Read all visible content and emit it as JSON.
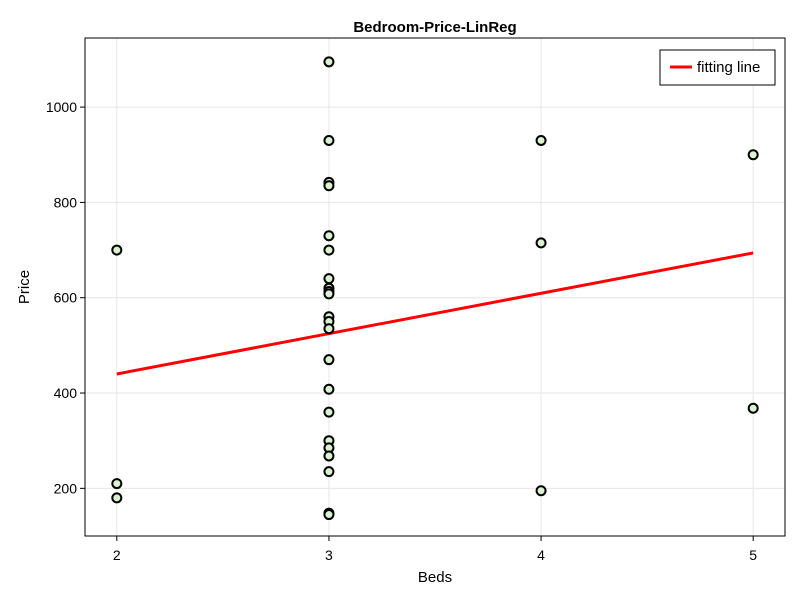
{
  "chart_data": {
    "type": "scatter",
    "title": "Bedroom-Price-LinReg",
    "xlabel": "Beds",
    "ylabel": "Price",
    "xlim": [
      1.85,
      5.15
    ],
    "ylim": [
      100,
      1145
    ],
    "xticks": [
      2,
      3,
      4,
      5
    ],
    "yticks": [
      200,
      400,
      600,
      800,
      1000
    ],
    "grid": true,
    "legend_position": "top-right",
    "points": [
      {
        "x": 2,
        "y": 700
      },
      {
        "x": 2,
        "y": 210
      },
      {
        "x": 2,
        "y": 180
      },
      {
        "x": 3,
        "y": 1095
      },
      {
        "x": 3,
        "y": 930
      },
      {
        "x": 3,
        "y": 842
      },
      {
        "x": 3,
        "y": 835
      },
      {
        "x": 3,
        "y": 730
      },
      {
        "x": 3,
        "y": 700
      },
      {
        "x": 3,
        "y": 640
      },
      {
        "x": 3,
        "y": 620
      },
      {
        "x": 3,
        "y": 613
      },
      {
        "x": 3,
        "y": 608
      },
      {
        "x": 3,
        "y": 560
      },
      {
        "x": 3,
        "y": 550
      },
      {
        "x": 3,
        "y": 535
      },
      {
        "x": 3,
        "y": 470
      },
      {
        "x": 3,
        "y": 408
      },
      {
        "x": 3,
        "y": 360
      },
      {
        "x": 3,
        "y": 300
      },
      {
        "x": 3,
        "y": 285
      },
      {
        "x": 3,
        "y": 268
      },
      {
        "x": 3,
        "y": 235
      },
      {
        "x": 3,
        "y": 148
      },
      {
        "x": 3,
        "y": 145
      },
      {
        "x": 4,
        "y": 930
      },
      {
        "x": 4,
        "y": 715
      },
      {
        "x": 4,
        "y": 195
      },
      {
        "x": 5,
        "y": 900
      },
      {
        "x": 5,
        "y": 368
      }
    ],
    "fit_line": {
      "name": "fitting line",
      "x": [
        2,
        5
      ],
      "y": [
        440,
        694
      ]
    },
    "colors": {
      "fit_line": "#ff0000",
      "marker_fill": "#d9f2d0",
      "marker_edge": "#000000",
      "grid": "#e6e6e6"
    }
  }
}
